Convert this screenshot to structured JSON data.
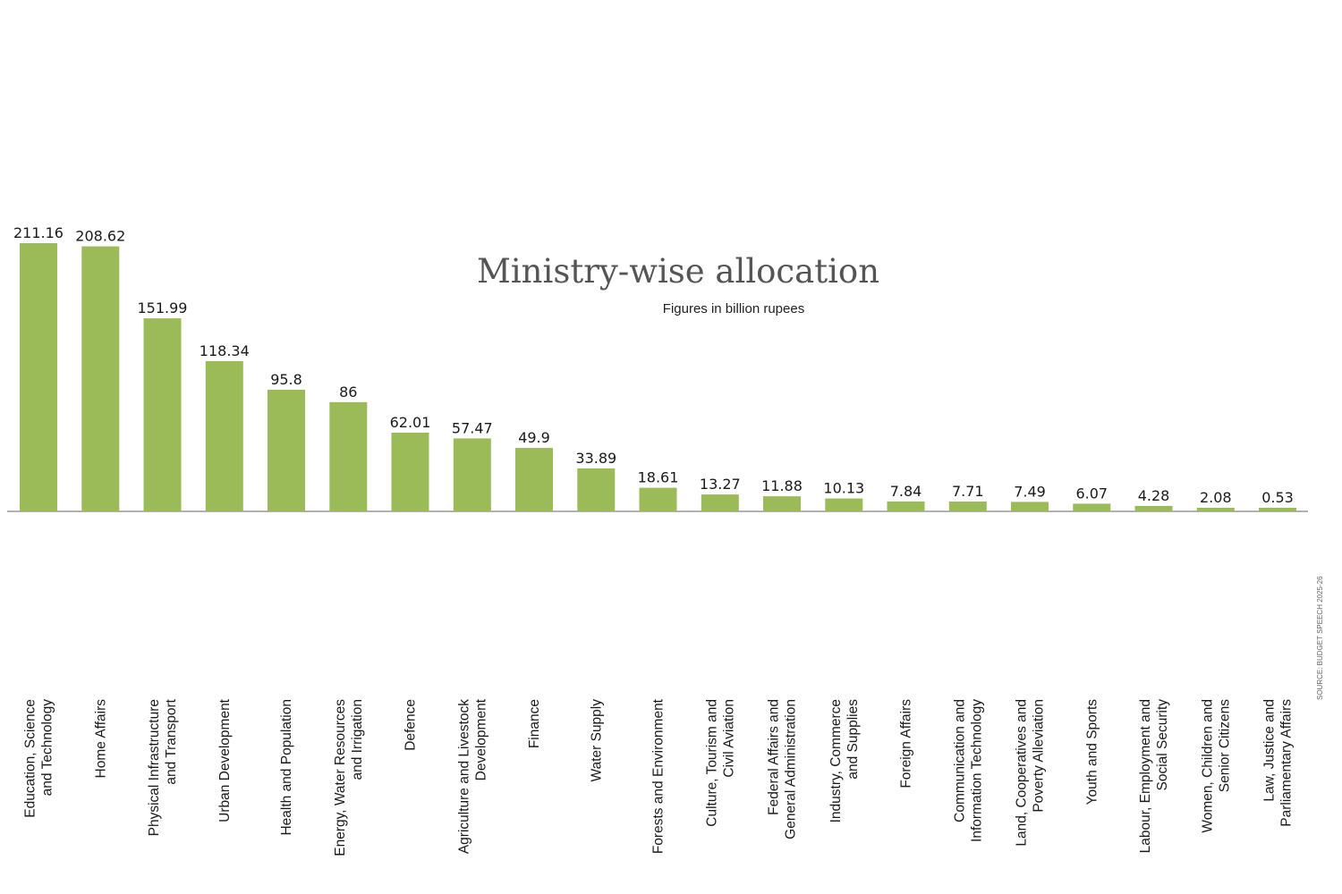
{
  "colors": {
    "bar": "#9bbb59",
    "axis": "#999999",
    "text": "#1a1a1a"
  },
  "chart_data": {
    "type": "bar",
    "title": "Ministry-wise allocation",
    "subtitle": "Figures in billion rupees",
    "source": "SOURCE: BUDGET SPEECH 2025-26",
    "categories": [
      [
        "Education, Science",
        "and Technology"
      ],
      [
        "Home Affairs"
      ],
      [
        "Physical Infrastructure",
        "and Transport"
      ],
      [
        "Urban Development"
      ],
      [
        "Health and Population"
      ],
      [
        "Energy, Water Resources",
        "and Irrigation"
      ],
      [
        "Defence"
      ],
      [
        "Agriculture and Livestock",
        "Development"
      ],
      [
        "Finance"
      ],
      [
        "Water Supply"
      ],
      [
        "Forests and Environment"
      ],
      [
        "Culture, Tourism and",
        "Civil Aviation"
      ],
      [
        "Federal Affairs and",
        "General Administration"
      ],
      [
        "Industry, Commerce",
        "and Supplies"
      ],
      [
        "Foreign Affairs"
      ],
      [
        "Communication and",
        "Information Technology"
      ],
      [
        "Land, Cooperatives and",
        "Poverty Alleviation"
      ],
      [
        "Youth and Sports"
      ],
      [
        "Labour, Employment and",
        "Social Security"
      ],
      [
        "Women, Children and",
        "Senior Citizens"
      ],
      [
        "Law, Justice and",
        "Parliamentary Affairs"
      ]
    ],
    "values": [
      211.16,
      208.62,
      151.99,
      118.34,
      95.8,
      86,
      62.01,
      57.47,
      49.9,
      33.89,
      18.61,
      13.27,
      11.88,
      10.13,
      7.84,
      7.71,
      7.49,
      6.07,
      4.28,
      2.08,
      0.53
    ],
    "value_labels": [
      "211.16",
      "208.62",
      "151.99",
      "118.34",
      "95.8",
      "86",
      "62.01",
      "57.47",
      "49.9",
      "33.89",
      "18.61",
      "13.27",
      "11.88",
      "10.13",
      "7.84",
      "7.71",
      "7.49",
      "6.07",
      "4.28",
      "2.08",
      "0.53"
    ],
    "ylim": [
      0,
      211.16
    ],
    "grid": false,
    "legend": "none"
  }
}
